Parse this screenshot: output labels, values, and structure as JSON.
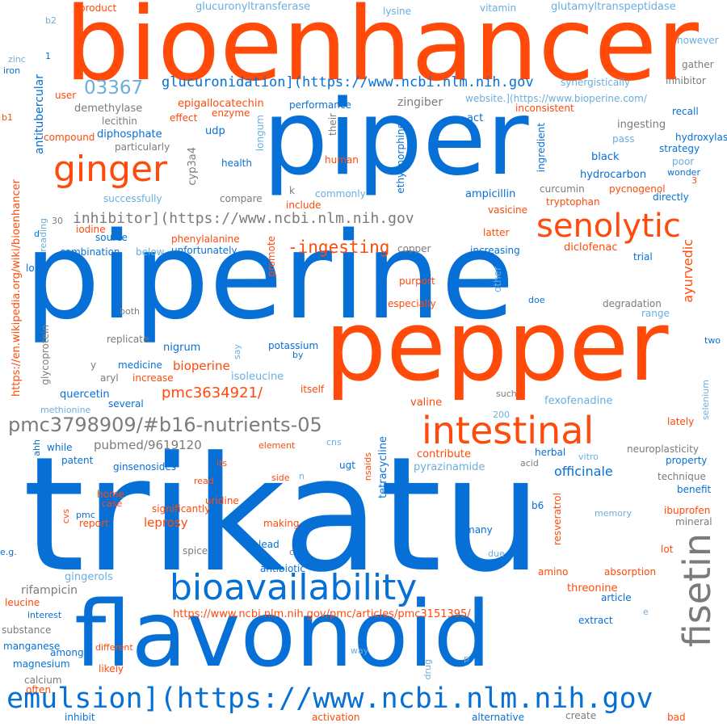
{
  "words": {
    "bioenhancer": "bioenhancer",
    "piper": "piper",
    "piperine": "piperine",
    "pepper": "pepper",
    "trikatu": "trikatu",
    "flavonoid": "flavonoid",
    "ginger": "ginger",
    "senolytic": "senolytic",
    "intestinal": "intestinal",
    "bioavailability": "bioavailability",
    "fisetin": "fisetin",
    "emulsion": "emulsion](https://www.ncbi.nlm.nih.gov",
    "pmc3798909": "pmc3798909/#b16-nutrients-05",
    "glucuronidation": "glucuronidation](https://www.ncbi.nlm.nih.gov",
    "inhibitor_link": "inhibitor](https://www.ncbi.nlm.nih.gov",
    "ingesting_dash": "-ingesting",
    "n03367": "03367",
    "pmc3634921": "pmc3634921/",
    "pmc3151395": "https://www.ncbi.nlm.nih.gov/pmc/articles/pmc3151395/",
    "pubmed": "pubmed/9619120",
    "bioperine_site": "website.](https://www.bioperine.com/",
    "wiki": "https://en.wikipedia.org/wiki/bioenhancer",
    "ayurvedic": "ayurvedic",
    "officinale": "officinale",
    "leprosy": "leprosy",
    "bioperine": "bioperine",
    "epigallocatechin": "epigallocatechin",
    "antitubercular": "antitubercular",
    "zingiber": "zingiber",
    "glycoprotein": "glycoprotein",
    "cyp3a4": "cyp3a4",
    "rifampicin": "rifampicin",
    "gingerols": "gingerols",
    "threonine": "threonine",
    "tetracycline": "tetracycline",
    "ethylmorphine": "ethylmorphine",
    "ampicillin": "ampicillin",
    "diclofenac": "diclofenac",
    "vasicine": "vasicine",
    "pyrazinamide": "pyrazinamide",
    "fexofenadine": "fexofenadine",
    "valine": "valine",
    "contribute": "contribute",
    "quercetin": "quercetin",
    "nigrum": "nigrum",
    "increase": "increase",
    "isoleucine": "isoleucine",
    "potassium": "potassium",
    "medicine": "medicine",
    "phenylalanine": "phenylalanine",
    "unfortunately": "unfortunately",
    "combination": "combination",
    "source": "source",
    "iodine": "iodine",
    "increasing": "increasing",
    "latter": "latter",
    "hydrocarbon": "hydrocarbon",
    "tryptophan": "tryptophan",
    "pycnogenol": "pycnogenol",
    "directly": "directly",
    "trial": "trial",
    "udp": "udp",
    "diphosphate": "diphosphate",
    "compound": "compound",
    "lecithin": "lecithin",
    "demethylase": "demethylase",
    "user": "user",
    "effect": "effect",
    "enzyme": "enzyme",
    "performance": "performance",
    "inconsistent": "inconsistent",
    "recall": "recall",
    "hydroxylase": "hydroxylase",
    "strategy": "strategy",
    "black": "black",
    "pass": "pass",
    "ingesting": "ingesting",
    "act": "act",
    "ingredient": "ingredient",
    "human": "human",
    "their": "their",
    "health": "health",
    "longum": "longum",
    "particularly": "particularly",
    "successfully": "successfully",
    "compare": "compare",
    "commonly": "commonly",
    "include": "include",
    "k": "k",
    "curcumin": "curcumin",
    "poor": "poor",
    "wonder": "wonder",
    "n3": "3",
    "product": "product",
    "b2": "b2",
    "glucuronyltransferase": "glucuronyltransferase",
    "lysine": "lysine",
    "vitamin": "vitamin",
    "glutamyltranspeptidase": "glutamyltranspeptidase",
    "however": "however",
    "gather": "gather",
    "inhibitor": "inhibitor",
    "synergistically": "synergistically",
    "zinc": "zinc",
    "iron": "iron",
    "n1": "1",
    "b1": "b1",
    "reading": "reading",
    "d": "d",
    "n30": "30",
    "long": "long",
    "below": "below",
    "promote": "promote",
    "copper": "copper",
    "purport": "purport",
    "especially": "especially",
    "other": "other",
    "doe": "doe",
    "degradation": "degradation",
    "range": "range",
    "both": "both",
    "replicate": "replicate",
    "two": "two",
    "say": "say",
    "by": "by",
    "y": "y",
    "aryl": "aryl",
    "itself": "itself",
    "such": "such",
    "selenium": "selenium",
    "several": "several",
    "methionine": "methionine",
    "n200": "200",
    "lately": "lately",
    "ahh": "ahh",
    "while": "while",
    "element": "element",
    "cns": "cns",
    "nsaids": "nsaids",
    "herbal": "herbal",
    "acid": "acid",
    "neuroplasticity": "neuroplasticity",
    "property": "property",
    "patent": "patent",
    "ginsenosides": "ginsenosides",
    "its": "its",
    "n": "n",
    "ugt": "ugt",
    "vitro": "vitro",
    "technique": "technique",
    "side": "side",
    "benefit": "benefit",
    "read": "read",
    "home": "home",
    "case": "case",
    "uridine": "uridine",
    "significantly": "significantly",
    "pmc": "pmc",
    "report": "report",
    "cvs": "cvs",
    "making": "making",
    "b6": "b6",
    "resveratrol": "resveratrol",
    "memory": "memory",
    "ibuprofen": "ibuprofen",
    "mineral": "mineral",
    "many": "many",
    "spice": "spice",
    "lead": "lead",
    "c": "c",
    "due": "due",
    "lot": "lot",
    "eg": "e.g.",
    "antibiotic": "antibiotic",
    "amino": "amino",
    "absorption": "absorption",
    "article": "article",
    "leucine": "leucine",
    "interest": "interest",
    "substance": "substance",
    "extract": "extract",
    "e": "e",
    "manganese": "manganese",
    "among": "among",
    "different": "different",
    "way": "way",
    "magnesium": "magnesium",
    "drug": "drug",
    "p": "p",
    "likely": "likely",
    "calcium": "calcium",
    "often": "often",
    "inhibit": "inhibit",
    "activation": "activation",
    "alternative": "alternative",
    "create": "create",
    "bad": "bad"
  },
  "colors": {
    "orange": "#ff4a0a",
    "blue": "#0670d6",
    "light_blue": "#6aaedf",
    "gray": "#7b7b7b"
  }
}
